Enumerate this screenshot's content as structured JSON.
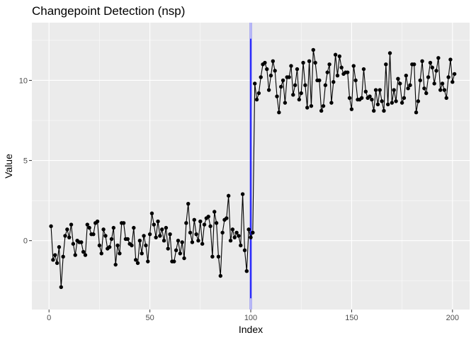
{
  "chart_data": {
    "type": "line",
    "title": "Changepoint Detection (nsp)",
    "xlabel": "Index",
    "ylabel": "Value",
    "xlim": [
      -8.5,
      208.5
    ],
    "ylim": [
      -4.3,
      13.6
    ],
    "x_ticks": [
      0,
      50,
      100,
      150,
      200
    ],
    "y_ticks": [
      0,
      5,
      10
    ],
    "x_tick_labels": [
      "0",
      "50",
      "100",
      "150",
      "200"
    ],
    "y_tick_labels": [
      "0",
      "5",
      "10"
    ],
    "x_minor": [
      25,
      75,
      125,
      175
    ],
    "y_minor": [
      -2.5,
      2.5,
      7.5,
      12.5
    ],
    "grid": true,
    "series": [
      {
        "style": "line+points",
        "color": "#000000",
        "x_start": 1,
        "values": [
          0.9,
          -1.2,
          -0.9,
          -1.4,
          -0.4,
          -2.9,
          -1.0,
          0.3,
          0.7,
          0.2,
          1.0,
          -0.2,
          -0.9,
          0.0,
          -0.1,
          -0.1,
          -0.7,
          -0.9,
          1.0,
          0.8,
          0.4,
          0.4,
          1.1,
          1.2,
          -0.3,
          -0.8,
          0.7,
          0.3,
          -0.5,
          -0.4,
          0.1,
          0.8,
          -1.5,
          -0.3,
          -0.8,
          1.1,
          1.1,
          0.1,
          0.1,
          -0.2,
          -0.3,
          0.8,
          -1.2,
          -1.4,
          0.0,
          -0.8,
          0.3,
          -0.3,
          -1.3,
          0.4,
          1.7,
          1.0,
          0.2,
          1.2,
          0.3,
          0.7,
          0.0,
          0.8,
          -0.5,
          0.4,
          -1.3,
          -1.3,
          -0.6,
          0.0,
          -0.8,
          -0.1,
          -1.1,
          1.1,
          2.3,
          0.5,
          -0.1,
          1.3,
          0.4,
          0.0,
          1.2,
          -0.2,
          1.0,
          1.4,
          1.5,
          0.9,
          -1.0,
          1.8,
          1.1,
          -1.0,
          -2.2,
          0.5,
          1.3,
          1.4,
          2.8,
          0.0,
          0.7,
          0.2,
          0.5,
          0.3,
          -0.3,
          2.9,
          -0.6,
          -1.9,
          0.7,
          0.2,
          0.5,
          9.8,
          8.8,
          9.2,
          10.2,
          11.0,
          11.1,
          10.7,
          9.4,
          10.3,
          11.2,
          10.6,
          9.0,
          8.0,
          9.6,
          10.0,
          8.6,
          10.2,
          10.2,
          10.9,
          9.1,
          9.7,
          10.7,
          8.8,
          9.2,
          11.1,
          9.7,
          8.3,
          11.2,
          8.4,
          11.9,
          11.1,
          10.0,
          10.0,
          8.1,
          8.4,
          9.7,
          10.5,
          11.0,
          8.6,
          9.9,
          11.6,
          10.3,
          11.5,
          10.8,
          10.4,
          10.5,
          10.5,
          8.9,
          8.2,
          10.9,
          10.0,
          8.8,
          8.8,
          8.9,
          10.7,
          9.3,
          8.9,
          9.0,
          8.8,
          8.1,
          9.4,
          8.5,
          9.4,
          8.7,
          8.1,
          11.0,
          8.5,
          11.7,
          8.6,
          9.4,
          8.7,
          10.1,
          9.8,
          8.6,
          8.9,
          10.3,
          9.5,
          9.7,
          11.0,
          11.0,
          8.0,
          8.7,
          10.0,
          11.2,
          9.5,
          9.2,
          10.2,
          11.1,
          10.8,
          9.8,
          10.6,
          11.4,
          9.4,
          9.8,
          9.4,
          8.9,
          10.2,
          11.3,
          9.9,
          10.4
        ]
      }
    ],
    "changepoints": [
      {
        "x": 100,
        "y_min": -3.6,
        "y_max": 12.6,
        "color": "#0000ff"
      }
    ]
  }
}
